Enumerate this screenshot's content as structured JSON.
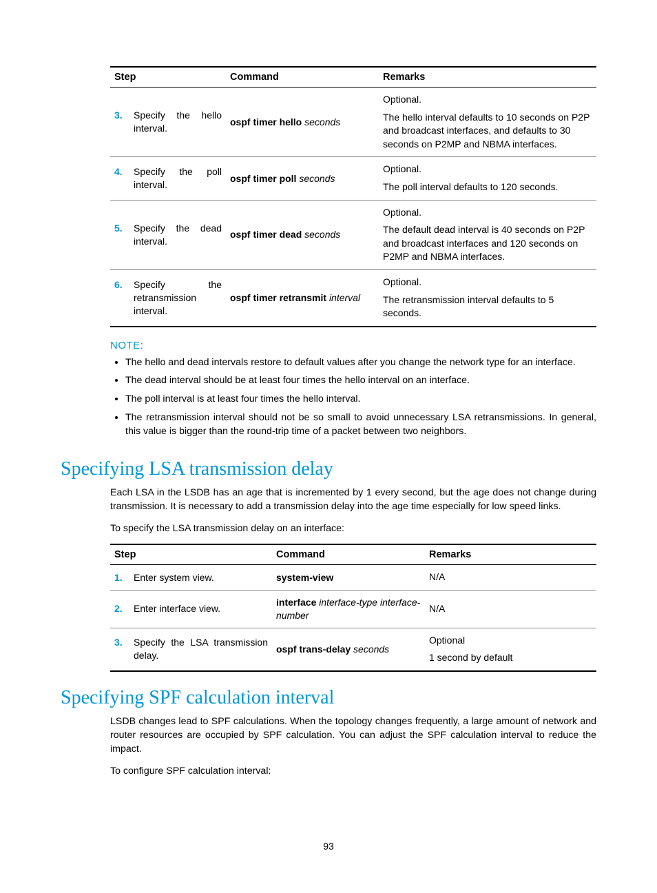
{
  "colors": {
    "accent": "#0096d6",
    "text": "#000000",
    "rule_thick": "#000000",
    "rule_thin": "#888888",
    "background": "#ffffff"
  },
  "typography": {
    "body_family": "Arial, Helvetica, sans-serif",
    "body_size_pt": 11,
    "heading_family": "Georgia, serif",
    "heading_size_pt": 21,
    "heading_weight": "normal"
  },
  "table1": {
    "headers": {
      "step": "Step",
      "command": "Command",
      "remarks": "Remarks"
    },
    "rows": [
      {
        "num": "3.",
        "label": "Specify the hello interval.",
        "cmd_bold": "ospf timer hello",
        "cmd_italic": "seconds",
        "remark_opt": "Optional.",
        "remark_text": "The hello interval defaults to 10 seconds on P2P and broadcast interfaces, and defaults to 30 seconds on P2MP and NBMA interfaces."
      },
      {
        "num": "4.",
        "label": "Specify the poll interval.",
        "cmd_bold": "ospf timer poll",
        "cmd_italic": "seconds",
        "remark_opt": "Optional.",
        "remark_text": "The poll interval defaults to 120 seconds."
      },
      {
        "num": "5.",
        "label": "Specify the dead interval.",
        "cmd_bold": "ospf timer dead",
        "cmd_italic": "seconds",
        "remark_opt": "Optional.",
        "remark_text": "The default dead interval is 40 seconds on P2P and broadcast interfaces and 120 seconds on P2MP and NBMA interfaces."
      },
      {
        "num": "6.",
        "label": "Specify the retransmission interval.",
        "cmd_bold": "ospf timer retransmit",
        "cmd_italic": "interval",
        "remark_opt": "Optional.",
        "remark_text": "The retransmission interval defaults to 5 seconds."
      }
    ]
  },
  "note": {
    "label": "NOTE:",
    "items": [
      "The hello and dead intervals restore to default values after you change the network type for an interface.",
      "The dead interval should be at least four times the hello interval on an interface.",
      "The poll interval is at least four times the hello interval.",
      "The retransmission interval should not be so small to avoid unnecessary LSA retransmissions. In general, this value is bigger than the round-trip time of a packet between two neighbors."
    ]
  },
  "section1": {
    "title": "Specifying LSA transmission delay",
    "para": "Each LSA in the LSDB has an age that is incremented by 1 every second, but the age does not change during transmission. It is necessary to add a transmission delay into the age time especially for low speed links.",
    "lead": "To specify the LSA transmission delay on an interface:"
  },
  "table2": {
    "headers": {
      "step": "Step",
      "command": "Command",
      "remarks": "Remarks"
    },
    "rows": [
      {
        "num": "1.",
        "label": "Enter system view.",
        "cmd_bold": "system-view",
        "cmd_italic": "",
        "remark_opt": "",
        "remark_text": "N/A"
      },
      {
        "num": "2.",
        "label": "Enter interface view.",
        "cmd_bold": "interface",
        "cmd_italic": "interface-type interface-number",
        "remark_opt": "",
        "remark_text": "N/A"
      },
      {
        "num": "3.",
        "label": "Specify the LSA transmission delay.",
        "cmd_bold": "ospf trans-delay",
        "cmd_italic": "seconds",
        "remark_opt": "Optional",
        "remark_text": "1 second by default"
      }
    ]
  },
  "section2": {
    "title": "Specifying SPF calculation interval",
    "para": "LSDB changes lead to SPF calculations. When the topology changes frequently, a large amount of network and router resources are occupied by SPF calculation. You can adjust the SPF calculation interval to reduce the impact.",
    "lead": "To configure SPF calculation interval:"
  },
  "page_number": "93"
}
